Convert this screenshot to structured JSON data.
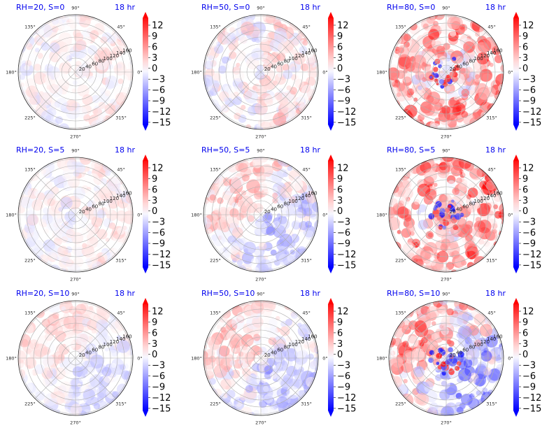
{
  "chart_data": {
    "type": "heatmap",
    "projection": "polar",
    "colormap": "bwr",
    "colorbar": {
      "ticks": [
        "12",
        "9",
        "6",
        "3",
        "0",
        "−3",
        "−6",
        "−9",
        "−12",
        "−15"
      ],
      "range": [
        -15,
        14
      ],
      "extend": "both"
    },
    "angle_ticks": [
      "90°",
      "45°",
      "0°",
      "315°",
      "270°",
      "225°",
      "180°",
      "135°"
    ],
    "radial_ticks": [
      "20",
      "40",
      "60",
      "80",
      "100",
      "120",
      "140",
      "160"
    ],
    "time_label": "18 hr",
    "panels": [
      {
        "title": "RH=20, S=0",
        "pattern": "weak_mixed",
        "seed": 11,
        "bias": 0.3
      },
      {
        "title": "RH=50, S=0",
        "pattern": "moderate_mixed",
        "seed": 23,
        "bias": 0.5
      },
      {
        "title": "RH=80, S=0",
        "pattern": "strong_core",
        "seed": 37,
        "bias": 1.0
      },
      {
        "title": "RH=20, S=5",
        "pattern": "weak_mixed",
        "seed": 41,
        "bias": 0.2
      },
      {
        "title": "RH=50, S=5",
        "pattern": "moderate_dipole",
        "seed": 53,
        "bias": 0.0
      },
      {
        "title": "RH=80, S=5",
        "pattern": "strong_core",
        "seed": 67,
        "bias": 1.2
      },
      {
        "title": "RH=20, S=10",
        "pattern": "weak_dipole",
        "seed": 71,
        "bias": 0.0
      },
      {
        "title": "RH=50, S=10",
        "pattern": "moderate_dipole",
        "seed": 83,
        "bias": 0.0
      },
      {
        "title": "RH=80, S=10",
        "pattern": "strong_dipole",
        "seed": 97,
        "bias": 0.0
      }
    ]
  }
}
